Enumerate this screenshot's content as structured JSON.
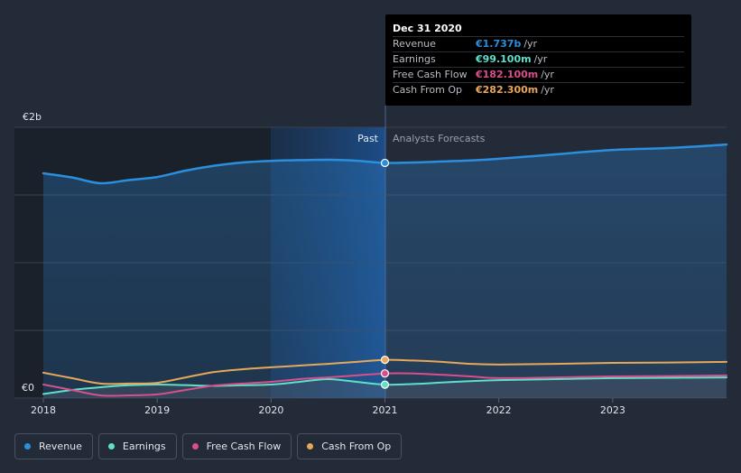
{
  "chart_data": {
    "type": "line",
    "y_axis": {
      "top_label": "€2b",
      "bottom_label": "€0",
      "ylim": [
        0,
        2000
      ]
    },
    "x_ticks": [
      "2018",
      "2019",
      "2020",
      "2021",
      "2022",
      "2023"
    ],
    "x_range": [
      2018.0,
      2024.0
    ],
    "regions": {
      "past_label": "Past",
      "forecast_label": "Analysts Forecasts",
      "divider_x": 2021.0
    },
    "series": [
      {
        "name": "Revenue",
        "color": "#2b8fdd",
        "points": [
          [
            2018.0,
            1660
          ],
          [
            2018.25,
            1630
          ],
          [
            2018.5,
            1587
          ],
          [
            2018.75,
            1610
          ],
          [
            2019.0,
            1633
          ],
          [
            2019.25,
            1680
          ],
          [
            2019.5,
            1716
          ],
          [
            2019.75,
            1740
          ],
          [
            2020.0,
            1752
          ],
          [
            2020.25,
            1757
          ],
          [
            2020.5,
            1760
          ],
          [
            2020.75,
            1753
          ],
          [
            2021.0,
            1737
          ],
          [
            2021.25,
            1740
          ],
          [
            2021.5,
            1747
          ],
          [
            2021.75,
            1755
          ],
          [
            2022.0,
            1767
          ],
          [
            2022.5,
            1800
          ],
          [
            2023.0,
            1833
          ],
          [
            2023.5,
            1847
          ],
          [
            2024.0,
            1873
          ]
        ]
      },
      {
        "name": "Earnings",
        "color": "#5ee0c9",
        "points": [
          [
            2018.0,
            30
          ],
          [
            2018.25,
            60
          ],
          [
            2018.5,
            80
          ],
          [
            2018.75,
            95
          ],
          [
            2019.0,
            100
          ],
          [
            2019.25,
            96
          ],
          [
            2019.5,
            90
          ],
          [
            2019.75,
            95
          ],
          [
            2020.0,
            100
          ],
          [
            2020.25,
            120
          ],
          [
            2020.5,
            140
          ],
          [
            2020.75,
            120
          ],
          [
            2021.0,
            99.1
          ],
          [
            2021.25,
            104
          ],
          [
            2021.5,
            115
          ],
          [
            2021.75,
            125
          ],
          [
            2022.0,
            133
          ],
          [
            2022.5,
            140
          ],
          [
            2023.0,
            147
          ],
          [
            2023.5,
            150
          ],
          [
            2024.0,
            153
          ]
        ]
      },
      {
        "name": "Free Cash Flow",
        "color": "#d94f8a",
        "points": [
          [
            2018.0,
            100
          ],
          [
            2018.25,
            60
          ],
          [
            2018.5,
            20
          ],
          [
            2018.75,
            20
          ],
          [
            2019.0,
            27
          ],
          [
            2019.25,
            60
          ],
          [
            2019.5,
            93
          ],
          [
            2019.75,
            107
          ],
          [
            2020.0,
            120
          ],
          [
            2020.25,
            140
          ],
          [
            2020.5,
            153
          ],
          [
            2020.75,
            167
          ],
          [
            2021.0,
            182.1
          ],
          [
            2021.25,
            182
          ],
          [
            2021.5,
            172
          ],
          [
            2021.75,
            160
          ],
          [
            2022.0,
            147
          ],
          [
            2022.5,
            153
          ],
          [
            2023.0,
            160
          ],
          [
            2023.5,
            163
          ],
          [
            2024.0,
            167
          ]
        ]
      },
      {
        "name": "Cash From Op",
        "color": "#e8a85a",
        "points": [
          [
            2018.0,
            187
          ],
          [
            2018.25,
            147
          ],
          [
            2018.5,
            107
          ],
          [
            2018.75,
            107
          ],
          [
            2019.0,
            113
          ],
          [
            2019.25,
            153
          ],
          [
            2019.5,
            193
          ],
          [
            2019.75,
            213
          ],
          [
            2020.0,
            227
          ],
          [
            2020.25,
            240
          ],
          [
            2020.5,
            253
          ],
          [
            2020.75,
            267
          ],
          [
            2021.0,
            282.3
          ],
          [
            2021.25,
            277
          ],
          [
            2021.5,
            267
          ],
          [
            2021.75,
            253
          ],
          [
            2022.0,
            247
          ],
          [
            2022.5,
            253
          ],
          [
            2023.0,
            260
          ],
          [
            2023.5,
            263
          ],
          [
            2024.0,
            267
          ]
        ]
      }
    ]
  },
  "tooltip": {
    "title": "Dec 31 2020",
    "rows": [
      {
        "name": "Revenue",
        "value": "€1.737b",
        "unit": "/yr",
        "color": "#2b8fdd"
      },
      {
        "name": "Earnings",
        "value": "€99.100m",
        "unit": "/yr",
        "color": "#5ee0c9"
      },
      {
        "name": "Free Cash Flow",
        "value": "€182.100m",
        "unit": "/yr",
        "color": "#d94f8a"
      },
      {
        "name": "Cash From Op",
        "value": "€282.300m",
        "unit": "/yr",
        "color": "#e8a85a"
      }
    ]
  },
  "legend": [
    {
      "label": "Revenue",
      "color": "#2b8fdd"
    },
    {
      "label": "Earnings",
      "color": "#5ee0c9"
    },
    {
      "label": "Free Cash Flow",
      "color": "#d94f8a"
    },
    {
      "label": "Cash From Op",
      "color": "#e8a85a"
    }
  ]
}
